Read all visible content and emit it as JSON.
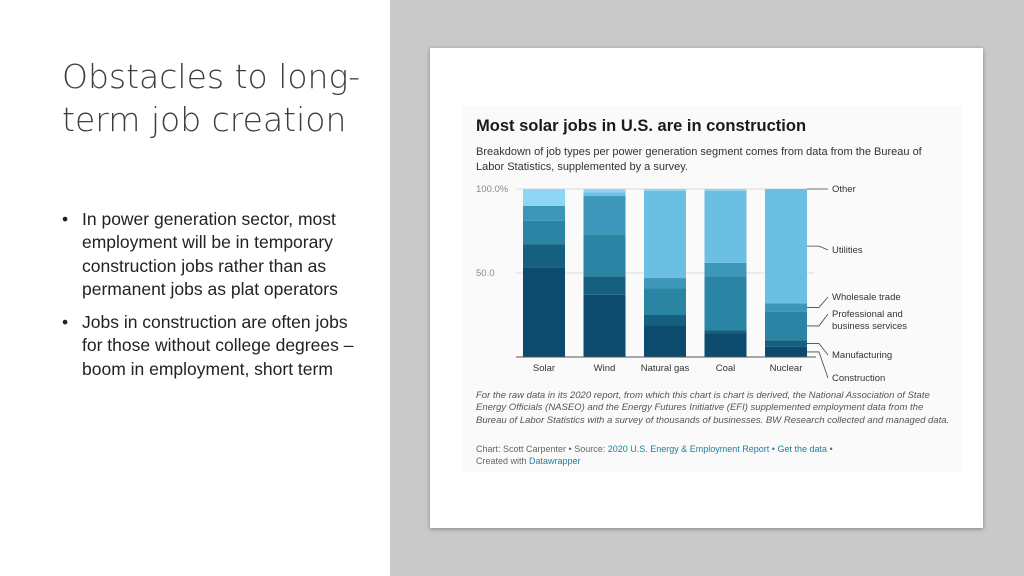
{
  "slide": {
    "title": "Obstacles to long-term job creation",
    "bullets": [
      "In power generation sector, most employment will be in temporary construction jobs rather than as permanent jobs as plat operators",
      "Jobs in construction are often jobs for those without college degrees – boom in employment, short term"
    ],
    "bullet_glyph": "•"
  },
  "chart_data": {
    "type": "bar",
    "stacked": true,
    "title": "Most solar jobs in U.S. are in construction",
    "subtitle": "Breakdown of job types per power generation segment comes from data from the Bureau of Labor Statistics, supplemented by a survey.",
    "categories": [
      "Solar",
      "Wind",
      "Natural gas",
      "Coal",
      "Nuclear"
    ],
    "ylim": [
      0,
      100
    ],
    "yticks": [
      {
        "value": 100,
        "label": "100.0%"
      },
      {
        "value": 50,
        "label": "50.0"
      }
    ],
    "grid": true,
    "legend_placement": "right (direct labels)",
    "series": [
      {
        "name": "Construction",
        "color": "#0c4a6e",
        "values": [
          53,
          37,
          19,
          14,
          6
        ]
      },
      {
        "name": "Manufacturing",
        "color": "#15607f",
        "values": [
          14,
          11,
          6,
          2,
          4
        ]
      },
      {
        "name": "Professional and business services",
        "color": "#2a84a3",
        "values": [
          14,
          25,
          16,
          32,
          17
        ]
      },
      {
        "name": "Wholesale trade",
        "color": "#3d97ba",
        "values": [
          9,
          23,
          6,
          8,
          5
        ]
      },
      {
        "name": "Utilities",
        "color": "#6abfe3",
        "values": [
          0,
          2,
          52,
          43,
          68
        ]
      },
      {
        "name": "Other",
        "color": "#8dd6f4",
        "values": [
          10,
          2,
          1,
          1,
          0
        ]
      }
    ],
    "source_note": "For the raw data in its 2020 report, from which this chart is chart is derived, the National Association of State Energy Officials (NASEO) and the Energy Futures Initiative (EFI) supplemented employment data from the Bureau of Labor Statistics with a survey of thousands of businesses. BW Research collected and managed data.",
    "credit": {
      "prefix": "Chart: Scott Carpenter • Source: ",
      "source_link": "2020 U.S. Energy & Employment Report",
      "sep": " • ",
      "data_link": "Get the data",
      "sep2": " •",
      "created": "Created with ",
      "tool_link": "Datawrapper"
    }
  }
}
